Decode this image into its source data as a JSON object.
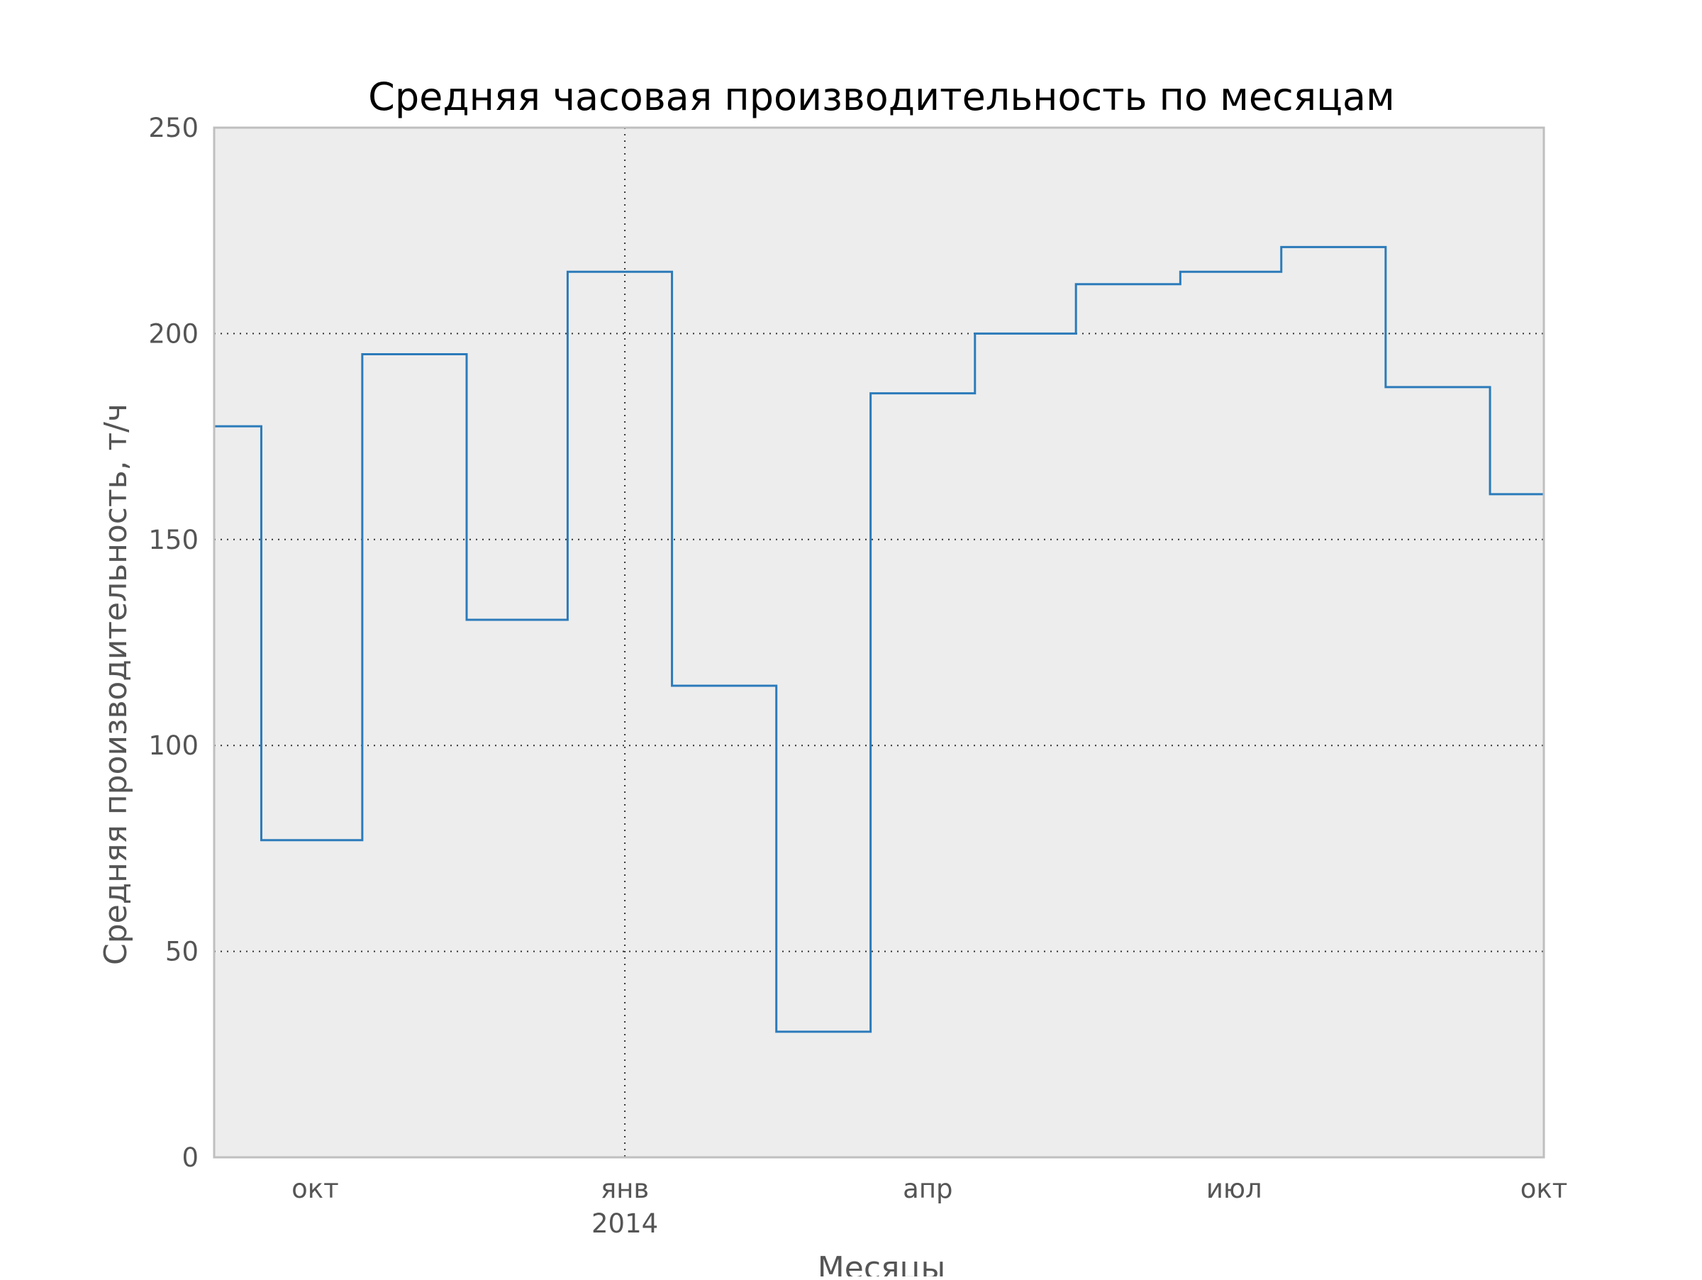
{
  "chart_data": {
    "type": "line",
    "step": "post",
    "title": "Средняя часовая производительность по месяцам",
    "xlabel": "Месяцы",
    "ylabel": "Средняя производительность, т/ч",
    "ylim": [
      0,
      250
    ],
    "yticks": [
      0,
      50,
      100,
      150,
      200,
      250
    ],
    "xlim": [
      "2013-09-01",
      "2014-10-01"
    ],
    "xticks": [
      {
        "date": "2013-10-01",
        "label": "окт",
        "sublabel": ""
      },
      {
        "date": "2014-01-01",
        "label": "янв",
        "sublabel": "2014"
      },
      {
        "date": "2014-04-01",
        "label": "апр",
        "sublabel": ""
      },
      {
        "date": "2014-07-01",
        "label": "июл",
        "sublabel": ""
      },
      {
        "date": "2014-10-01",
        "label": "окт",
        "sublabel": ""
      }
    ],
    "grid": {
      "y": true,
      "x_at": [
        "2014-01-01"
      ]
    },
    "legend": false,
    "series": [
      {
        "color": "#2b7bba",
        "x": [
          "2013-09-01",
          "2013-09-15",
          "2013-10-15",
          "2013-11-15",
          "2013-12-15",
          "2014-01-15",
          "2014-02-15",
          "2014-03-15",
          "2014-04-15",
          "2014-05-15",
          "2014-06-15",
          "2014-07-15",
          "2014-08-15",
          "2014-09-15",
          "2014-10-01"
        ],
        "values": [
          177.5,
          77,
          195,
          130.5,
          215,
          114.5,
          30.5,
          185.5,
          200,
          212,
          215,
          221,
          187,
          161,
          161
        ]
      }
    ]
  }
}
